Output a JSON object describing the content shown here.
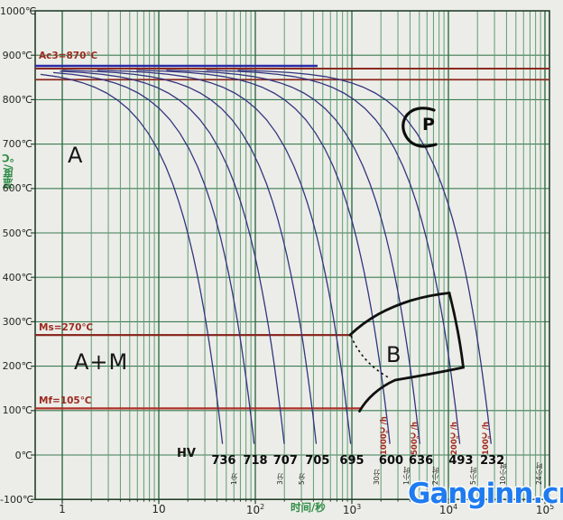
{
  "watermark": {
    "text": "Ganginn.cn",
    "color": "#1f7bf0"
  },
  "axes": {
    "y_title": "温度/℃",
    "x_title": "时间/秒",
    "y_ticks": [
      {
        "label": "1000℃",
        "temp": 1000
      },
      {
        "label": "900℃",
        "temp": 900
      },
      {
        "label": "800℃",
        "temp": 800
      },
      {
        "label": "700℃",
        "temp": 700
      },
      {
        "label": "600℃",
        "temp": 600
      },
      {
        "label": "500℃",
        "temp": 500
      },
      {
        "label": "400℃",
        "temp": 400
      },
      {
        "label": "300℃",
        "temp": 300
      },
      {
        "label": "200℃",
        "temp": 200
      },
      {
        "label": "100℃",
        "temp": 100
      },
      {
        "label": "0℃",
        "temp": 0
      },
      {
        "label": "-100℃",
        "temp": -100
      }
    ],
    "x_ticks": [
      {
        "base": "1",
        "sup": "",
        "exp": 0
      },
      {
        "base": "10",
        "sup": "",
        "exp": 1
      },
      {
        "base": "10",
        "sup": "2",
        "exp": 2
      },
      {
        "base": "10",
        "sup": "3",
        "exp": 3
      },
      {
        "base": "10",
        "sup": "4",
        "exp": 4
      },
      {
        "base": "10",
        "sup": "5",
        "exp": 5
      }
    ]
  },
  "chart_data": {
    "type": "line",
    "x_axis": {
      "label": "时间/秒",
      "scale": "log",
      "range_s": [
        1,
        100000
      ]
    },
    "y_axis": {
      "label": "温度/℃",
      "range_c": [
        -100,
        1000
      ],
      "grid_step_c": 100
    },
    "grid": "on",
    "critical_lines": [
      {
        "name": "Ac3",
        "label": "Ac3=870℃",
        "temp_c": 870,
        "color": "#8a2a20",
        "extent": "full"
      },
      {
        "name": "Ac1-unlabeled",
        "label": "",
        "temp_c": 845,
        "color": "#8a2a20",
        "extent": "full"
      },
      {
        "name": "Ms",
        "label": "Ms=270℃",
        "temp_c": 270,
        "color": "#8a2a20",
        "extent": "partial"
      },
      {
        "name": "Mf",
        "label": "Mf=105℃",
        "temp_c": 105,
        "color": "#b03028",
        "extent": "partial"
      },
      {
        "name": "austenite-band",
        "label": "",
        "temp_c": 876,
        "color": "#2b2ba8",
        "extent": "left"
      }
    ],
    "cooling_curves": [
      {
        "hv": "736",
        "end_time_s": 47,
        "rate_label": ""
      },
      {
        "hv": "718",
        "end_time_s": 100,
        "rate_label": ""
      },
      {
        "hv": "707",
        "end_time_s": 205,
        "rate_label": ""
      },
      {
        "hv": "705",
        "end_time_s": 440,
        "rate_label": ""
      },
      {
        "hv": "695",
        "end_time_s": 1000,
        "rate_label": ""
      },
      {
        "hv": "600",
        "end_time_s": 2550,
        "rate_label": "1000℃/h"
      },
      {
        "hv": "636",
        "end_time_s": 5200,
        "rate_label": "500℃/h"
      },
      {
        "hv": "493",
        "end_time_s": 13500,
        "rate_label": "200℃/h"
      },
      {
        "hv": "232",
        "end_time_s": 28500,
        "rate_label": "100℃/h"
      }
    ],
    "curve_color": "#34347e",
    "hv_row_label": "HV",
    "regions": [
      {
        "label": "A"
      },
      {
        "label": "A+M"
      },
      {
        "label": "B"
      },
      {
        "label": "P"
      }
    ],
    "time_markers": [
      {
        "label": "1分",
        "t_s": 60
      },
      {
        "label": "3分",
        "t_s": 180
      },
      {
        "label": "5分",
        "t_s": 300
      },
      {
        "label": "30分",
        "t_s": 1800
      },
      {
        "label": "1小时",
        "t_s": 3600
      },
      {
        "label": "2小时",
        "t_s": 7200
      },
      {
        "label": "5小时",
        "t_s": 18000
      },
      {
        "label": "10小时",
        "t_s": 36000
      },
      {
        "label": "24小时",
        "t_s": 86400
      }
    ]
  }
}
